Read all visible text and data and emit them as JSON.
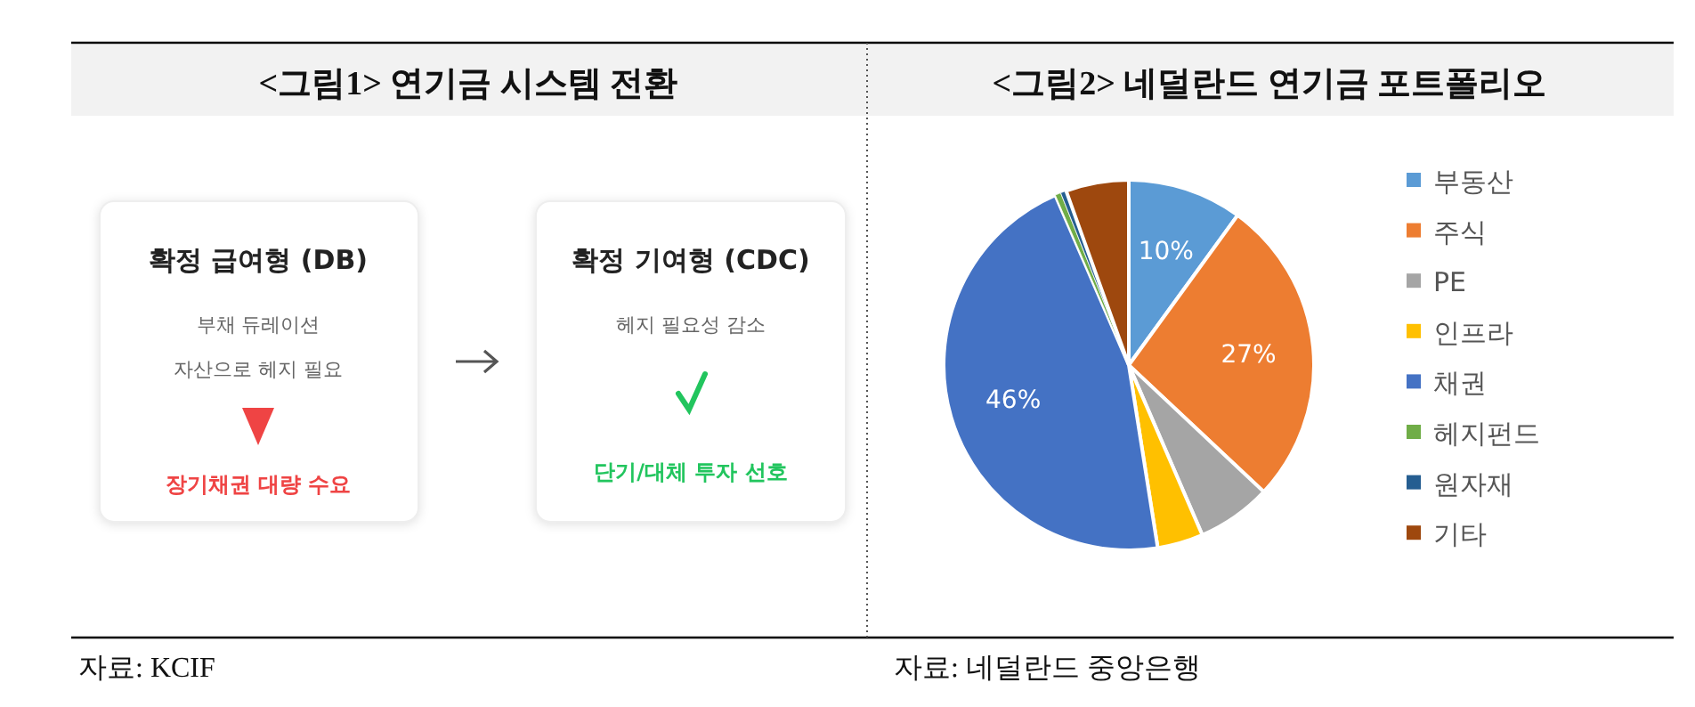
{
  "chart_data": [
    {
      "type": "other",
      "title": "<그림1> 연기금 시스템 전환",
      "annotations": [
        "확정 급여형 (DB)",
        "부채 듀레이션",
        "자산으로 헤지 필요",
        "장기채권 대량 수요",
        "확정 기여형 (CDC)",
        "헤지 필요성 감소",
        "단기/대체 투자 선호",
        "자료: KCIF"
      ]
    },
    {
      "type": "pie",
      "title": "<그림2> 네덜란드 연기금 포트폴리오",
      "categories": [
        "부동산",
        "주식",
        "PE",
        "인프라",
        "채권",
        "헤지펀드",
        "원자재",
        "기타"
      ],
      "values": [
        10,
        27,
        6.5,
        4,
        46,
        0.5,
        0.5,
        5.5
      ],
      "colors": [
        "#5b9bd5",
        "#ed7d31",
        "#a5a5a5",
        "#ffc000",
        "#4472c4",
        "#70ad47",
        "#255e91",
        "#9e480e"
      ],
      "value_labels": [
        "10%",
        "27%",
        null,
        null,
        "46%",
        null,
        null,
        null
      ],
      "legend": "right",
      "annotations": [
        "자료: 네덜란드 중앙은행"
      ]
    }
  ]
}
